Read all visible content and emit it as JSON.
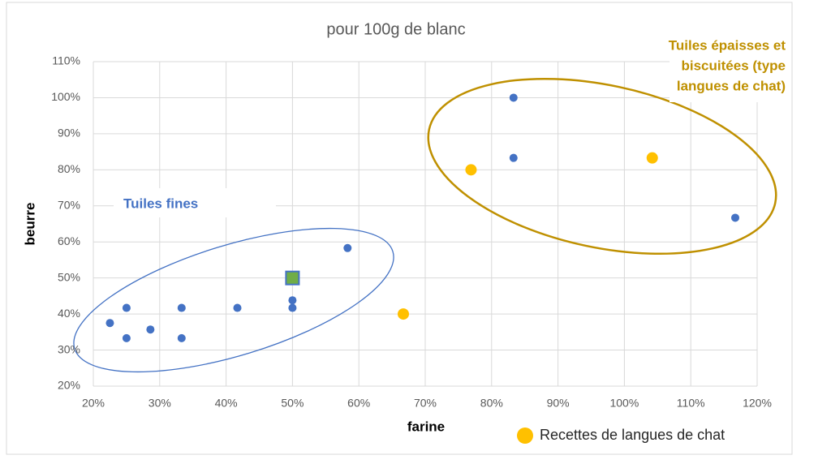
{
  "chart_data": {
    "type": "scatter",
    "title": "pour 100g de blanc",
    "x_label": "farine",
    "y_label": "beurre",
    "xlim": [
      20,
      120
    ],
    "xticks": [
      {
        "value": 20,
        "label": "20%"
      },
      {
        "value": 30,
        "label": "30%"
      },
      {
        "value": 40,
        "label": "40%"
      },
      {
        "value": 50,
        "label": "50%"
      },
      {
        "value": 60,
        "label": "60%"
      },
      {
        "value": 70,
        "label": "70%"
      },
      {
        "value": 80,
        "label": "80%"
      },
      {
        "value": 90,
        "label": "90%"
      },
      {
        "value": 100,
        "label": "100%"
      },
      {
        "value": 110,
        "label": "110%"
      },
      {
        "value": 120,
        "label": "120%"
      }
    ],
    "ylim": [
      20,
      110
    ],
    "yticks": [
      {
        "value": 20,
        "label": "20%"
      },
      {
        "value": 30,
        "label": "30%"
      },
      {
        "value": 40,
        "label": "40%"
      },
      {
        "value": 50,
        "label": "50%"
      },
      {
        "value": 60,
        "label": "60%"
      },
      {
        "value": 70,
        "label": "70%"
      },
      {
        "value": 80,
        "label": "80%"
      },
      {
        "value": 90,
        "label": "90%"
      },
      {
        "value": 100,
        "label": "100%"
      },
      {
        "value": 110,
        "label": "110%"
      }
    ],
    "grid": true,
    "series": [
      {
        "color": "#4472c4",
        "marker": "circle",
        "x": [
          22.5,
          25,
          25,
          28.6,
          33.3,
          33.3,
          41.7,
          50,
          50,
          58.3,
          83.3,
          83.3,
          116.7
        ],
        "values": [
          37.5,
          41.7,
          33.3,
          35.7,
          41.7,
          33.3,
          41.7,
          43.8,
          41.7,
          58.3,
          100,
          83.3,
          66.7
        ]
      },
      {
        "name": "Recettes de langues de chat",
        "color": "#ffc000",
        "marker": "circle",
        "x": [
          66.7,
          76.9,
          104.2
        ],
        "values": [
          40,
          80,
          83.3
        ]
      },
      {
        "color": "#70ad47",
        "marker": "square",
        "x": [
          50
        ],
        "values": [
          50
        ]
      }
    ],
    "annotations": [
      {
        "lines": [
          "Tuiles fines"
        ],
        "color": "#4472c4"
      },
      {
        "lines": [
          "Tuiles épaisses et",
          "biscuitées (type",
          "langues de chat)"
        ],
        "color": "#bf9000"
      }
    ]
  }
}
